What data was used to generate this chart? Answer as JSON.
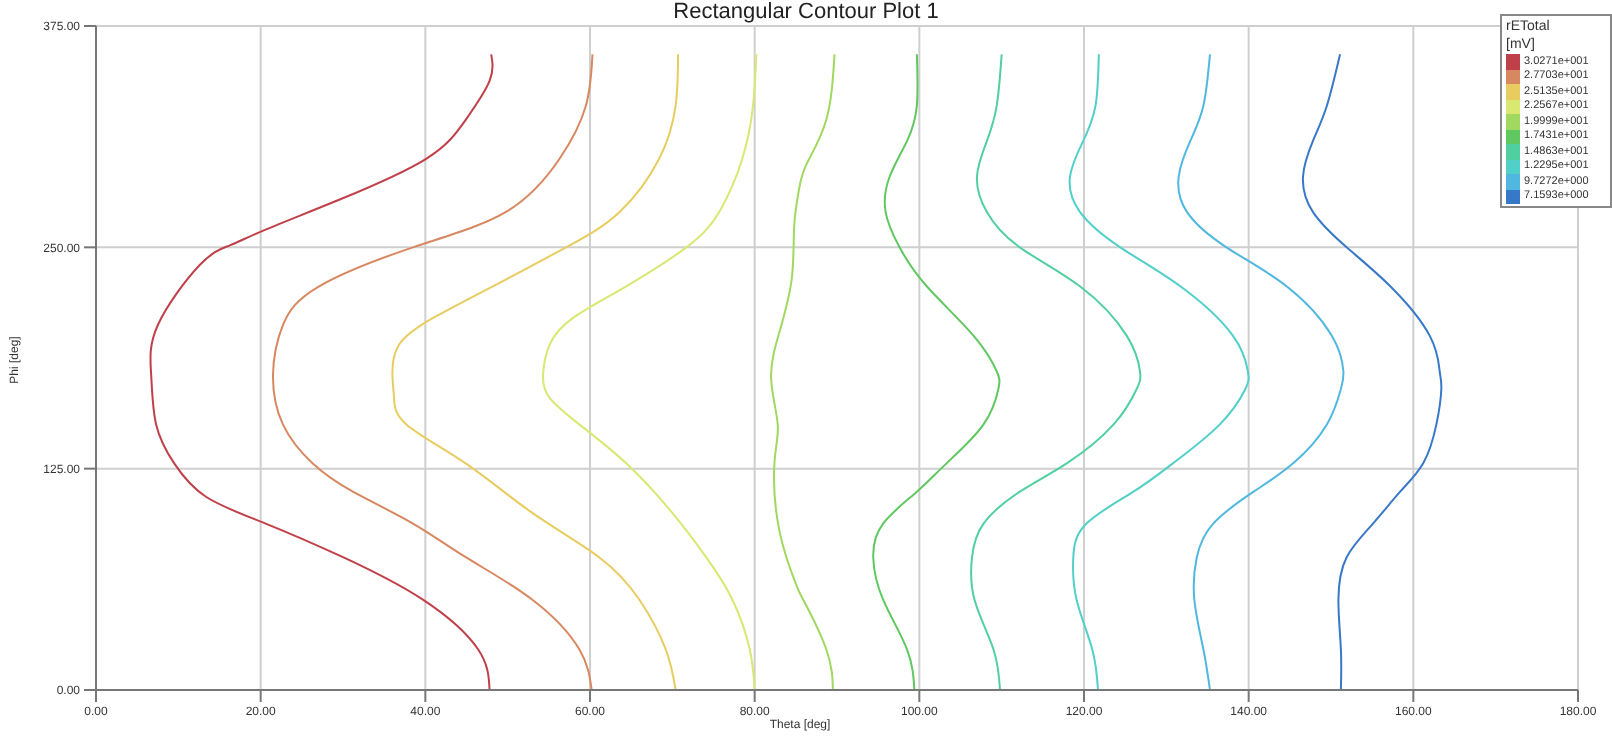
{
  "chart_data": {
    "type": "line",
    "title": "Rectangular Contour Plot 1",
    "xlabel": "Theta [deg]",
    "ylabel": "Phi [deg]",
    "legend_title": "rETotal [mV]",
    "legend": "top right",
    "grid": true,
    "marker": "none",
    "line_style": "solid",
    "xlim": [
      0,
      180
    ],
    "xticks": [
      {
        "value": 0,
        "label": "0.00"
      },
      {
        "value": 20,
        "label": "20.00"
      },
      {
        "value": 40,
        "label": "40.00"
      },
      {
        "value": 60,
        "label": "60.00"
      },
      {
        "value": 80,
        "label": "80.00"
      },
      {
        "value": 100,
        "label": "100.00"
      },
      {
        "value": 120,
        "label": "120.00"
      },
      {
        "value": 140,
        "label": "140.00"
      },
      {
        "value": 160,
        "label": "160.00"
      },
      {
        "value": 180,
        "label": "180.00"
      }
    ],
    "ylim": [
      0,
      375
    ],
    "yticks": [
      {
        "value": 0,
        "label": "0.00"
      },
      {
        "value": 125,
        "label": "125.00"
      },
      {
        "value": 250,
        "label": "250.00"
      },
      {
        "value": 375,
        "label": "375.00"
      }
    ],
    "series": [
      {
        "name": "3.0271e+001",
        "color": "#c0404a",
        "x": [
          47.8,
          46.4,
          39.7,
          30,
          20.6,
          13.4,
          9.5,
          7.3,
          6.7,
          7.5,
          12.6,
          16.2,
          20.6,
          29.6,
          40.1,
          44.9,
          47.8,
          48
        ],
        "values": [
          0,
          23,
          51,
          75,
          94,
          109,
          128,
          150,
          178,
          206,
          240,
          251,
          260,
          277,
          300,
          322,
          344,
          359
        ]
      },
      {
        "name": "2.7703e+001",
        "color": "#d88860",
        "x": [
          60.2,
          58.7,
          53,
          44.9,
          38.5,
          31.2,
          26.3,
          22.7,
          21.5,
          22.7,
          27.1,
          38.5,
          49.8,
          56.3,
          59.5,
          60.3
        ],
        "values": [
          0,
          23,
          51,
          75,
          94,
          112,
          128,
          150,
          178,
          206,
          228,
          250,
          270,
          300,
          330,
          359
        ]
      },
      {
        "name": "2.5135e+001",
        "color": "#e8cc60",
        "x": [
          70.4,
          69.2,
          66,
          61.1,
          53,
          44.9,
          37.7,
          36.2,
          36,
          36.8,
          40.9,
          48.2,
          57.1,
          63.6,
          68.4,
          70.4,
          70.7
        ],
        "values": [
          0,
          23,
          51,
          75,
          100,
          128,
          150,
          165,
          178,
          195,
          210,
          228,
          250,
          270,
          300,
          330,
          359
        ]
      },
      {
        "name": "2.2567e+001",
        "color": "#d8e870",
        "x": [
          80,
          79.4,
          77.3,
          74.1,
          70,
          64.4,
          58.7,
          55.1,
          54.3,
          55.1,
          57.9,
          64.4,
          71.7,
          75.7,
          78.5,
          79.8,
          80.2
        ],
        "values": [
          0,
          23,
          51,
          75,
          100,
          128,
          150,
          165,
          178,
          195,
          210,
          228,
          250,
          270,
          300,
          330,
          359
        ]
      },
      {
        "name": "1.9999e+001",
        "color": "#a0d860",
        "x": [
          89.5,
          88.7,
          85.9,
          85,
          83,
          82.4,
          82.8,
          82,
          83,
          84.5,
          84.8,
          85.4,
          86.3,
          88.7,
          89.7
        ],
        "values": [
          0,
          23,
          51,
          60,
          90,
          128,
          150,
          176,
          202,
          232,
          262,
          283,
          297,
          322,
          359
        ]
      },
      {
        "name": "1.7431e+001",
        "color": "#60c860",
        "x": [
          99.4,
          98.5,
          95.6,
          94.4,
          95.6,
          99.7,
          103.3,
          107.8,
          109.6,
          109.4,
          106.6,
          100.9,
          97.6,
          95.9,
          96.4,
          98.5,
          99.7,
          99.7
        ],
        "values": [
          0,
          23,
          51,
          75,
          94,
          112,
          128,
          150,
          170,
          180,
          200,
          228,
          250,
          270,
          290,
          310,
          330,
          359
        ]
      },
      {
        "name": "1.4863e+001",
        "color": "#50d0a0",
        "x": [
          109.8,
          109,
          106.7,
          106.4,
          107.8,
          112.2,
          117.9,
          123.6,
          126.4,
          126.8,
          125.2,
          119.5,
          112.2,
          108.2,
          107,
          108.2,
          109.4,
          110
        ],
        "values": [
          0,
          23,
          51,
          75,
          94,
          112,
          128,
          150,
          170,
          180,
          200,
          228,
          250,
          270,
          290,
          310,
          330,
          359
        ]
      },
      {
        "name": "1.2295e+001",
        "color": "#50d0c8",
        "x": [
          121.7,
          121,
          119.1,
          118.7,
          120.3,
          126,
          130.8,
          136.5,
          139.6,
          139.9,
          138.1,
          131.7,
          124.4,
          119.5,
          118.3,
          119.9,
          121.4,
          121.8
        ],
        "values": [
          0,
          23,
          51,
          75,
          94,
          112,
          128,
          150,
          170,
          180,
          200,
          228,
          250,
          270,
          290,
          310,
          330,
          359
        ]
      },
      {
        "name": "9.7272e+000",
        "color": "#50b8e0",
        "x": [
          135.3,
          134.5,
          133.4,
          133.7,
          135.7,
          140.6,
          145.4,
          149.5,
          151.2,
          151.5,
          150.1,
          144.6,
          137.3,
          132.5,
          131.5,
          132.9,
          134.5,
          135.3
        ],
        "values": [
          0,
          23,
          51,
          75,
          94,
          112,
          128,
          150,
          170,
          180,
          200,
          228,
          250,
          270,
          290,
          310,
          330,
          359
        ]
      },
      {
        "name": "7.1593e+000",
        "color": "#3878c8",
        "x": [
          151.2,
          151.2,
          150.9,
          151.9,
          155.1,
          158.4,
          161.2,
          162.8,
          163.4,
          163.2,
          162,
          157.2,
          151.9,
          147.8,
          146.6,
          147.8,
          149.5,
          151.1
        ],
        "values": [
          0,
          23,
          51,
          75,
          94,
          112,
          128,
          150,
          170,
          180,
          200,
          228,
          250,
          270,
          290,
          310,
          330,
          359
        ]
      }
    ]
  }
}
